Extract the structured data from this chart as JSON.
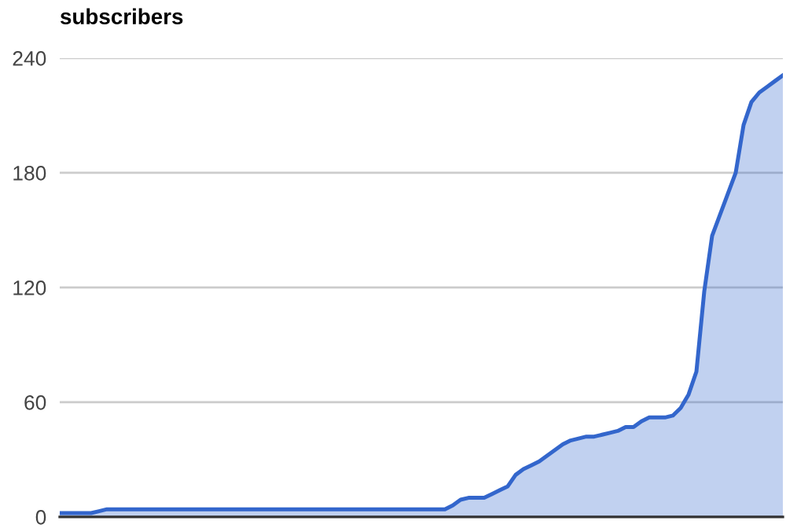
{
  "chart_data": {
    "type": "area",
    "title": "subscribers",
    "categories": [
      null,
      null,
      null,
      null,
      null,
      null,
      null,
      null,
      null,
      null,
      null,
      null,
      null,
      null,
      null,
      null,
      null,
      null,
      null,
      null,
      null,
      null,
      null,
      null,
      null,
      null,
      null,
      null,
      null,
      null,
      null,
      null,
      null,
      null,
      null,
      null,
      null,
      null,
      null,
      null,
      null,
      null,
      null,
      null,
      null,
      null,
      null,
      null,
      null,
      null,
      null,
      null,
      null,
      null,
      null,
      null,
      null,
      null,
      null,
      null,
      null,
      null,
      null,
      null,
      null,
      null,
      null,
      null,
      null,
      null,
      null,
      null,
      null,
      null,
      null,
      null,
      null,
      null,
      null,
      null,
      null,
      null,
      null,
      null,
      null,
      null,
      null,
      null,
      null,
      null,
      null,
      null,
      null
    ],
    "series": [
      {
        "color": "#3366cc",
        "values": [
          2,
          2,
          2,
          2,
          2,
          3,
          4,
          4,
          4,
          4,
          4,
          4,
          4,
          4,
          4,
          4,
          4,
          4,
          4,
          4,
          4,
          4,
          4,
          4,
          4,
          4,
          4,
          4,
          4,
          4,
          4,
          4,
          4,
          4,
          4,
          4,
          4,
          4,
          4,
          4,
          4,
          4,
          4,
          4,
          4,
          4,
          4,
          4,
          4,
          4,
          6,
          9,
          10,
          10,
          10,
          12,
          14,
          16,
          22,
          25,
          27,
          29,
          32,
          35,
          38,
          40,
          41,
          42,
          42,
          43,
          44,
          45,
          47,
          47,
          50,
          52,
          52,
          52,
          53,
          57,
          64,
          76,
          118,
          147,
          158,
          169,
          180,
          205,
          217,
          222,
          225,
          228,
          231
        ]
      }
    ],
    "ylim": [
      0,
      240
    ],
    "yticks": [
      0,
      60,
      120,
      180,
      240
    ],
    "grid": "y",
    "tick_labels": "y"
  }
}
